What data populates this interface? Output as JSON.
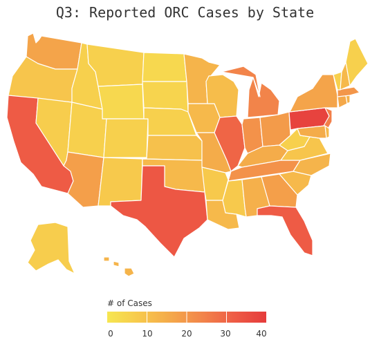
{
  "title": "Q3: Reported ORC Cases by State",
  "legend": {
    "title": "# of Cases",
    "min": 0,
    "max": 40,
    "ticks": [
      "0",
      "10",
      "20",
      "30",
      "40"
    ],
    "colors": [
      "#f6e651",
      "#f7c94c",
      "#f4a84a",
      "#f2844a",
      "#ee5b45",
      "#e53b3b"
    ]
  },
  "chart_data": {
    "type": "choropleth",
    "metric": "# of Cases",
    "scale": [
      0,
      40
    ],
    "values": {
      "WA": 17,
      "OR": 9,
      "CA": 32,
      "NV": 7,
      "ID": 6,
      "MT": 6,
      "WY": 4,
      "UT": 6,
      "AZ": 18,
      "CO": 6,
      "NM": 8,
      "ND": 4,
      "SD": 5,
      "NE": 6,
      "KS": 10,
      "OK": 12,
      "TX": 33,
      "MN": 13,
      "IA": 12,
      "MO": 15,
      "AR": 8,
      "LA": 12,
      "WI": 11,
      "IL": 30,
      "MI": 24,
      "IN": 21,
      "OH": 19,
      "KY": 15,
      "TN": 21,
      "MS": 8,
      "AL": 14,
      "GA": 18,
      "FL": 32,
      "SC": 12,
      "NC": 13,
      "VA": 9,
      "WV": 6,
      "PA": 38,
      "NY": 17,
      "NJ": 25,
      "MD": 15,
      "DE": 12,
      "CT": 16,
      "RI": 14,
      "MA": 20,
      "VT": 6,
      "NH": 12,
      "ME": 6,
      "AK": 7,
      "HI": 13
    }
  }
}
